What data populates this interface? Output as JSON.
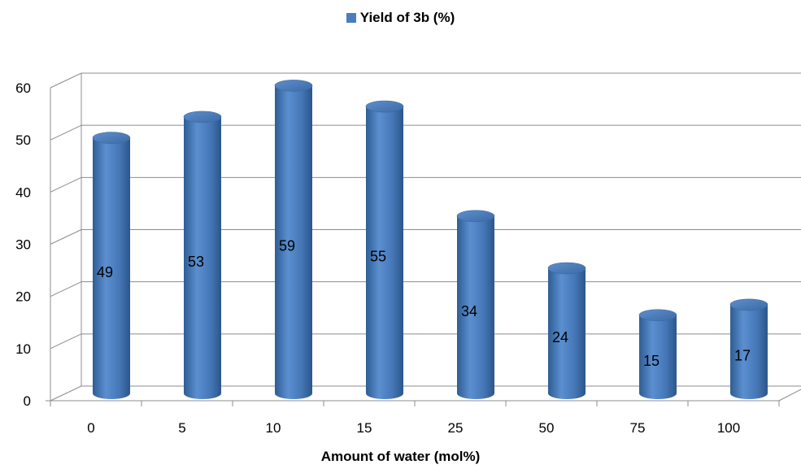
{
  "chart_data": {
    "type": "bar",
    "style": "3d-cylinder",
    "categories": [
      "0",
      "5",
      "10",
      "15",
      "25",
      "50",
      "75",
      "100"
    ],
    "series": [
      {
        "name": "Yield of 3b (%)",
        "values": [
          49,
          53,
          59,
          55,
          34,
          24,
          15,
          17
        ]
      }
    ],
    "xlabel": "Amount of water (mol%)",
    "ylabel": "",
    "ylim": [
      0,
      60
    ],
    "yticks": [
      0,
      10,
      20,
      30,
      40,
      50,
      60
    ],
    "grid": true,
    "legend_position": "top",
    "data_labels": true,
    "colors": {
      "bar": "#4a7ebb",
      "bar_dark": "#2f5d93",
      "bar_light": "#7aa3d6",
      "grid": "#8c8c8c"
    }
  }
}
